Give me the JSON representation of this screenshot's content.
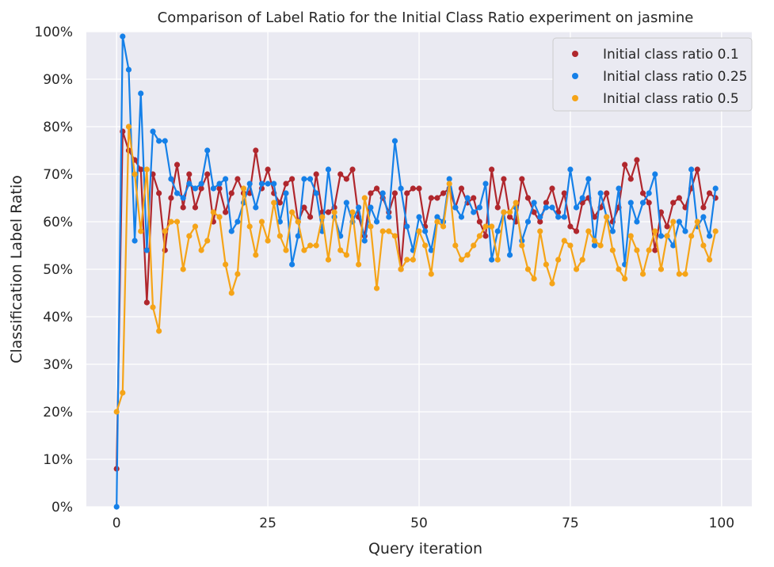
{
  "chart_data": {
    "type": "line",
    "title": "Comparison of Label Ratio for the Initial Class Ratio experiment on jasmine",
    "xlabel": "Query iteration",
    "ylabel": "Classification Label Ratio",
    "xlim": [
      -5,
      105
    ],
    "ylim": [
      0,
      1
    ],
    "x_ticks": [
      0,
      25,
      50,
      75,
      100
    ],
    "x_tick_labels": [
      "0",
      "25",
      "50",
      "75",
      "100"
    ],
    "y_ticks": [
      0,
      0.1,
      0.2,
      0.3,
      0.4,
      0.5,
      0.6,
      0.7,
      0.8,
      0.9,
      1.0
    ],
    "y_tick_labels": [
      "0%",
      "10%",
      "20%",
      "30%",
      "40%",
      "50%",
      "60%",
      "70%",
      "80%",
      "90%",
      "100%"
    ],
    "grid": true,
    "background": "#eaeaf2",
    "legend_position": "top-right",
    "markers": "circle",
    "x": [
      0,
      1,
      2,
      3,
      4,
      5,
      6,
      7,
      8,
      9,
      10,
      11,
      12,
      13,
      14,
      15,
      16,
      17,
      18,
      19,
      20,
      21,
      22,
      23,
      24,
      25,
      26,
      27,
      28,
      29,
      30,
      31,
      32,
      33,
      34,
      35,
      36,
      37,
      38,
      39,
      40,
      41,
      42,
      43,
      44,
      45,
      46,
      47,
      48,
      49,
      50,
      51,
      52,
      53,
      54,
      55,
      56,
      57,
      58,
      59,
      60,
      61,
      62,
      63,
      64,
      65,
      66,
      67,
      68,
      69,
      70,
      71,
      72,
      73,
      74,
      75,
      76,
      77,
      78,
      79,
      80,
      81,
      82,
      83,
      84,
      85,
      86,
      87,
      88,
      89,
      90,
      91,
      92,
      93,
      94,
      95,
      96,
      97,
      98,
      99
    ],
    "series": [
      {
        "name": "Initial class ratio 0.1",
        "color": "#b0272d",
        "values": [
          0.08,
          0.79,
          0.75,
          0.73,
          0.71,
          0.43,
          0.7,
          0.66,
          0.54,
          0.65,
          0.72,
          0.63,
          0.7,
          0.63,
          0.67,
          0.7,
          0.6,
          0.67,
          0.62,
          0.66,
          0.69,
          0.66,
          0.66,
          0.75,
          0.67,
          0.71,
          0.66,
          0.64,
          0.68,
          0.69,
          0.6,
          0.63,
          0.61,
          0.7,
          0.62,
          0.62,
          0.63,
          0.7,
          0.69,
          0.71,
          0.61,
          0.57,
          0.66,
          0.67,
          0.65,
          0.62,
          0.66,
          0.5,
          0.66,
          0.67,
          0.67,
          0.59,
          0.65,
          0.65,
          0.66,
          0.67,
          0.63,
          0.67,
          0.64,
          0.65,
          0.6,
          0.57,
          0.71,
          0.63,
          0.69,
          0.61,
          0.6,
          0.69,
          0.65,
          0.62,
          0.6,
          0.64,
          0.67,
          0.62,
          0.66,
          0.59,
          0.58,
          0.64,
          0.65,
          0.61,
          0.63,
          0.66,
          0.6,
          0.63,
          0.72,
          0.69,
          0.73,
          0.66,
          0.64,
          0.54,
          0.62,
          0.59,
          0.64,
          0.65,
          0.63,
          0.67,
          0.71,
          0.63,
          0.66,
          0.65
        ]
      },
      {
        "name": "Initial class ratio 0.25",
        "color": "#1580e8",
        "values": [
          0.0,
          0.99,
          0.92,
          0.56,
          0.87,
          0.54,
          0.79,
          0.77,
          0.77,
          0.69,
          0.66,
          0.65,
          0.68,
          0.67,
          0.68,
          0.75,
          0.67,
          0.68,
          0.69,
          0.58,
          0.6,
          0.64,
          0.68,
          0.63,
          0.68,
          0.68,
          0.68,
          0.6,
          0.66,
          0.51,
          0.57,
          0.69,
          0.69,
          0.66,
          0.58,
          0.71,
          0.61,
          0.57,
          0.64,
          0.6,
          0.63,
          0.56,
          0.63,
          0.6,
          0.66,
          0.61,
          0.77,
          0.67,
          0.59,
          0.54,
          0.61,
          0.58,
          0.54,
          0.61,
          0.6,
          0.69,
          0.63,
          0.61,
          0.65,
          0.62,
          0.63,
          0.68,
          0.52,
          0.58,
          0.62,
          0.53,
          0.63,
          0.56,
          0.6,
          0.64,
          0.61,
          0.63,
          0.63,
          0.61,
          0.61,
          0.71,
          0.63,
          0.65,
          0.69,
          0.55,
          0.66,
          0.61,
          0.58,
          0.67,
          0.51,
          0.64,
          0.6,
          0.64,
          0.66,
          0.7,
          0.57,
          0.57,
          0.55,
          0.6,
          0.58,
          0.71,
          0.59,
          0.61,
          0.57,
          0.67
        ]
      },
      {
        "name": "Initial class ratio 0.5",
        "color": "#f5a418",
        "values": [
          0.2,
          0.24,
          0.8,
          0.7,
          0.58,
          0.71,
          0.42,
          0.37,
          0.58,
          0.6,
          0.6,
          0.5,
          0.57,
          0.59,
          0.54,
          0.56,
          0.62,
          0.61,
          0.51,
          0.45,
          0.49,
          0.67,
          0.59,
          0.53,
          0.6,
          0.56,
          0.64,
          0.57,
          0.54,
          0.62,
          0.6,
          0.54,
          0.55,
          0.55,
          0.61,
          0.52,
          0.62,
          0.54,
          0.53,
          0.62,
          0.51,
          0.65,
          0.59,
          0.46,
          0.58,
          0.58,
          0.57,
          0.5,
          0.52,
          0.52,
          0.58,
          0.55,
          0.49,
          0.6,
          0.59,
          0.68,
          0.55,
          0.52,
          0.53,
          0.55,
          0.57,
          0.59,
          0.59,
          0.52,
          0.62,
          0.62,
          0.64,
          0.55,
          0.5,
          0.48,
          0.58,
          0.51,
          0.47,
          0.52,
          0.56,
          0.55,
          0.5,
          0.52,
          0.58,
          0.56,
          0.55,
          0.61,
          0.54,
          0.5,
          0.48,
          0.57,
          0.54,
          0.49,
          0.54,
          0.58,
          0.5,
          0.57,
          0.6,
          0.49,
          0.49,
          0.57,
          0.6,
          0.55,
          0.52,
          0.58
        ]
      }
    ]
  }
}
